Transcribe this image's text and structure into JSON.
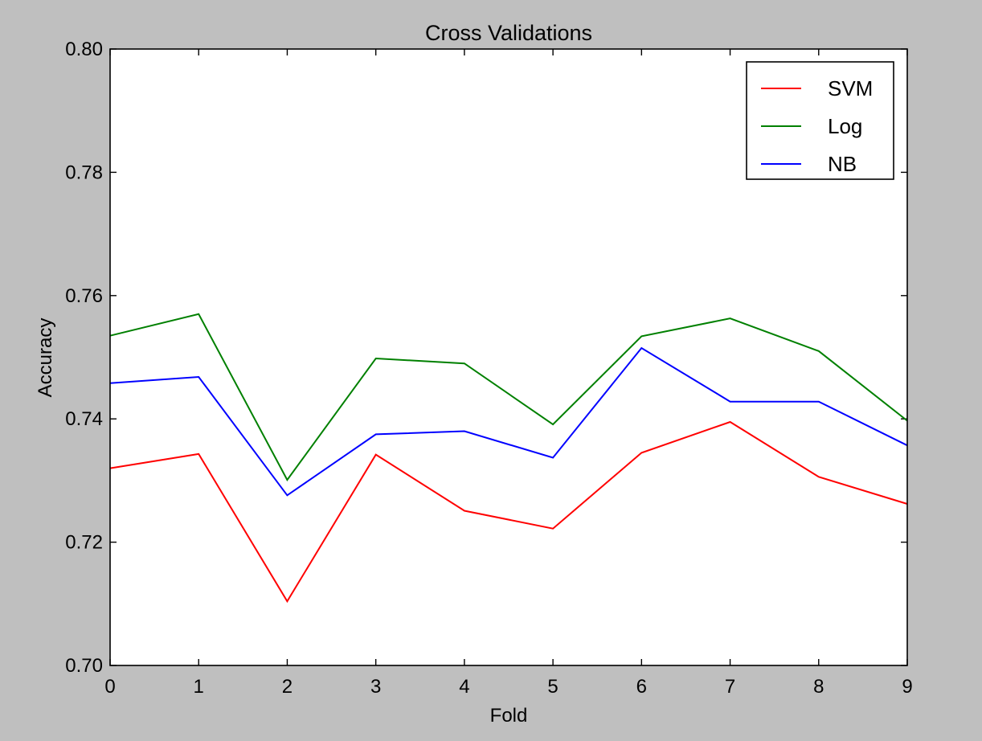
{
  "chart_data": {
    "type": "line",
    "title": "Cross Validations",
    "xlabel": "Fold",
    "ylabel": "Accuracy",
    "xlim": [
      0,
      9
    ],
    "ylim": [
      0.7,
      0.8
    ],
    "xticks": [
      0,
      1,
      2,
      3,
      4,
      5,
      6,
      7,
      8,
      9
    ],
    "xtick_labels": [
      "0",
      "1",
      "2",
      "3",
      "4",
      "5",
      "6",
      "7",
      "8",
      "9"
    ],
    "yticks": [
      0.7,
      0.72,
      0.74,
      0.76,
      0.78,
      0.8
    ],
    "ytick_labels": [
      "0.70",
      "0.72",
      "0.74",
      "0.76",
      "0.78",
      "0.80"
    ],
    "grid": false,
    "legend_position": "top-right",
    "x": [
      0,
      1,
      2,
      3,
      4,
      5,
      6,
      7,
      8,
      9
    ],
    "series": [
      {
        "name": "SVM",
        "color": "#ff0000",
        "values": [
          0.732,
          0.7343,
          0.7104,
          0.7342,
          0.7251,
          0.7222,
          0.7345,
          0.7395,
          0.7306,
          0.7262
        ]
      },
      {
        "name": "Log",
        "color": "#008000",
        "values": [
          0.7535,
          0.757,
          0.7301,
          0.7498,
          0.749,
          0.7391,
          0.7534,
          0.7563,
          0.751,
          0.7397
        ]
      },
      {
        "name": "NB",
        "color": "#0000ff",
        "values": [
          0.7458,
          0.7468,
          0.7276,
          0.7375,
          0.738,
          0.7337,
          0.7515,
          0.7428,
          0.7428,
          0.7357
        ]
      }
    ]
  }
}
